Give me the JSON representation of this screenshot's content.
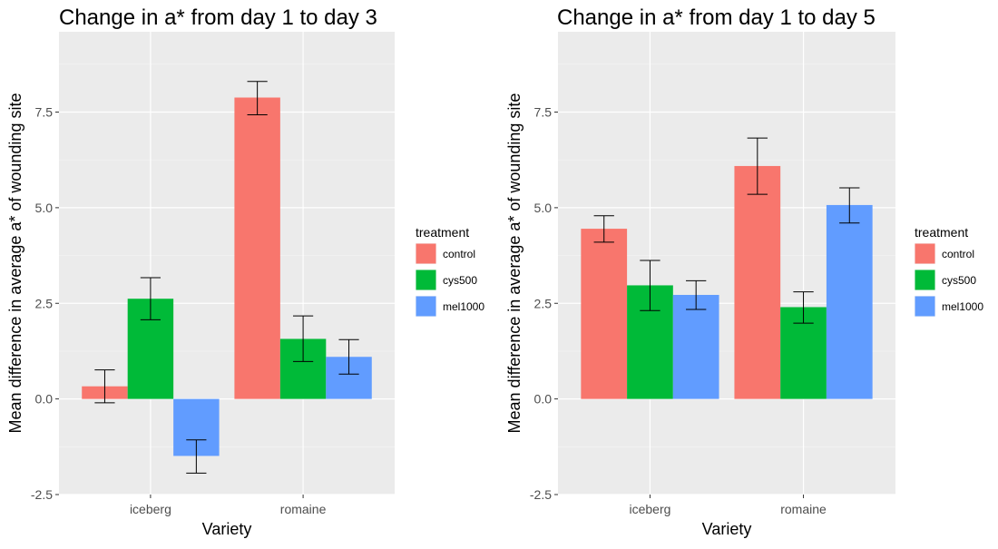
{
  "chart_data": [
    {
      "type": "bar",
      "title": "Change in a* from day 1 to day 3",
      "xlabel": "Variety",
      "ylabel": "Mean difference in average a* of wounding site",
      "categories": [
        "iceberg",
        "romaine"
      ],
      "ylim": [
        -2.5,
        9.6
      ],
      "yticks": [
        -2.5,
        0.0,
        2.5,
        5.0,
        7.5
      ],
      "ytick_labels": [
        "-2.5",
        "0.0",
        "2.5",
        "5.0",
        "7.5"
      ],
      "grid": true,
      "legend": {
        "title": "treatment",
        "position": "right"
      },
      "series": [
        {
          "name": "control",
          "color": "#F8766D",
          "values": [
            0.33,
            7.88
          ],
          "error_low": [
            -0.1,
            7.43
          ],
          "error_high": [
            0.76,
            8.3
          ]
        },
        {
          "name": "cys500",
          "color": "#00BA38",
          "values": [
            2.62,
            1.57
          ],
          "error_low": [
            2.07,
            0.98
          ],
          "error_high": [
            3.17,
            2.17
          ]
        },
        {
          "name": "mel1000",
          "color": "#619CFF",
          "values": [
            -1.49,
            1.1
          ],
          "error_low": [
            -1.94,
            0.65
          ],
          "error_high": [
            -1.07,
            1.55
          ]
        }
      ]
    },
    {
      "type": "bar",
      "title": "Change in a* from day 1 to day 5",
      "xlabel": "Variety",
      "ylabel": "Mean difference in average a* of wounding site",
      "categories": [
        "iceberg",
        "romaine"
      ],
      "ylim": [
        -2.5,
        9.6
      ],
      "yticks": [
        -2.5,
        0.0,
        2.5,
        5.0,
        7.5
      ],
      "ytick_labels": [
        "-2.5",
        "0.0",
        "2.5",
        "5.0",
        "7.5"
      ],
      "grid": true,
      "legend": {
        "title": "treatment",
        "position": "right"
      },
      "series": [
        {
          "name": "control",
          "color": "#F8766D",
          "values": [
            4.45,
            6.09
          ],
          "error_low": [
            4.1,
            5.35
          ],
          "error_high": [
            4.79,
            6.82
          ]
        },
        {
          "name": "cys500",
          "color": "#00BA38",
          "values": [
            2.97,
            2.4
          ],
          "error_low": [
            2.31,
            1.98
          ],
          "error_high": [
            3.62,
            2.8
          ]
        },
        {
          "name": "mel1000",
          "color": "#619CFF",
          "values": [
            2.72,
            5.07
          ],
          "error_low": [
            2.34,
            4.6
          ],
          "error_high": [
            3.09,
            5.52
          ]
        }
      ]
    }
  ]
}
